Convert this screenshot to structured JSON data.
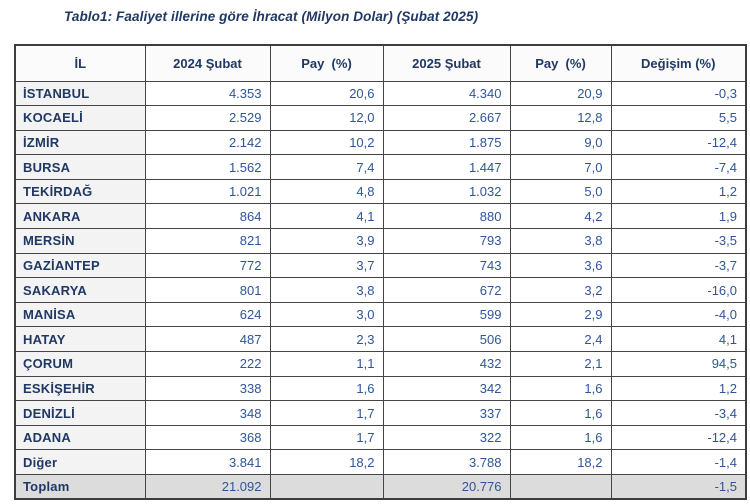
{
  "title": "Tablo1: Faaliyet illerine göre İhracat (Milyon Dolar) (Şubat 2025)",
  "colors": {
    "title_navy": "#1f3864",
    "number_blue": "#2f5597",
    "border": "#454545",
    "label_cell_bg": "#f3f3f3",
    "total_row_bg": "#dcdcdc",
    "header_bg": "#fbfbfb"
  },
  "table": {
    "columns": [
      "İL",
      "2024 Şubat",
      "Pay  (%)",
      "2025 Şubat",
      "Pay  (%)",
      "Değişim (%)"
    ],
    "rows": [
      {
        "il": "İSTANBUL",
        "v2024": "4.353",
        "pay2024": "20,6",
        "v2025": "4.340",
        "pay2025": "20,9",
        "degisim": "-0,3"
      },
      {
        "il": "KOCAELİ",
        "v2024": "2.529",
        "pay2024": "12,0",
        "v2025": "2.667",
        "pay2025": "12,8",
        "degisim": "5,5"
      },
      {
        "il": "İZMİR",
        "v2024": "2.142",
        "pay2024": "10,2",
        "v2025": "1.875",
        "pay2025": "9,0",
        "degisim": "-12,4"
      },
      {
        "il": "BURSA",
        "v2024": "1.562",
        "pay2024": "7,4",
        "v2025": "1.447",
        "pay2025": "7,0",
        "degisim": "-7,4"
      },
      {
        "il": "TEKİRDAĞ",
        "v2024": "1.021",
        "pay2024": "4,8",
        "v2025": "1.032",
        "pay2025": "5,0",
        "degisim": "1,2"
      },
      {
        "il": "ANKARA",
        "v2024": "864",
        "pay2024": "4,1",
        "v2025": "880",
        "pay2025": "4,2",
        "degisim": "1,9"
      },
      {
        "il": "MERSİN",
        "v2024": "821",
        "pay2024": "3,9",
        "v2025": "793",
        "pay2025": "3,8",
        "degisim": "-3,5"
      },
      {
        "il": "GAZİANTEP",
        "v2024": "772",
        "pay2024": "3,7",
        "v2025": "743",
        "pay2025": "3,6",
        "degisim": "-3,7"
      },
      {
        "il": "SAKARYA",
        "v2024": "801",
        "pay2024": "3,8",
        "v2025": "672",
        "pay2025": "3,2",
        "degisim": "-16,0"
      },
      {
        "il": "MANİSA",
        "v2024": "624",
        "pay2024": "3,0",
        "v2025": "599",
        "pay2025": "2,9",
        "degisim": "-4,0"
      },
      {
        "il": "HATAY",
        "v2024": "487",
        "pay2024": "2,3",
        "v2025": "506",
        "pay2025": "2,4",
        "degisim": "4,1"
      },
      {
        "il": "ÇORUM",
        "v2024": "222",
        "pay2024": "1,1",
        "v2025": "432",
        "pay2025": "2,1",
        "degisim": "94,5"
      },
      {
        "il": "ESKİŞEHİR",
        "v2024": "338",
        "pay2024": "1,6",
        "v2025": "342",
        "pay2025": "1,6",
        "degisim": "1,2"
      },
      {
        "il": "DENİZLİ",
        "v2024": "348",
        "pay2024": "1,7",
        "v2025": "337",
        "pay2025": "1,6",
        "degisim": "-3,4"
      },
      {
        "il": "ADANA",
        "v2024": "368",
        "pay2024": "1,7",
        "v2025": "322",
        "pay2025": "1,6",
        "degisim": "-12,4"
      },
      {
        "il": "Diğer",
        "v2024": "3.841",
        "pay2024": "18,2",
        "v2025": "3.788",
        "pay2025": "18,2",
        "degisim": "-1,4"
      }
    ],
    "total_row": {
      "il": "Toplam",
      "v2024": "21.092",
      "pay2024": "",
      "v2025": "20.776",
      "pay2025": "",
      "degisim": "-1,5"
    }
  }
}
